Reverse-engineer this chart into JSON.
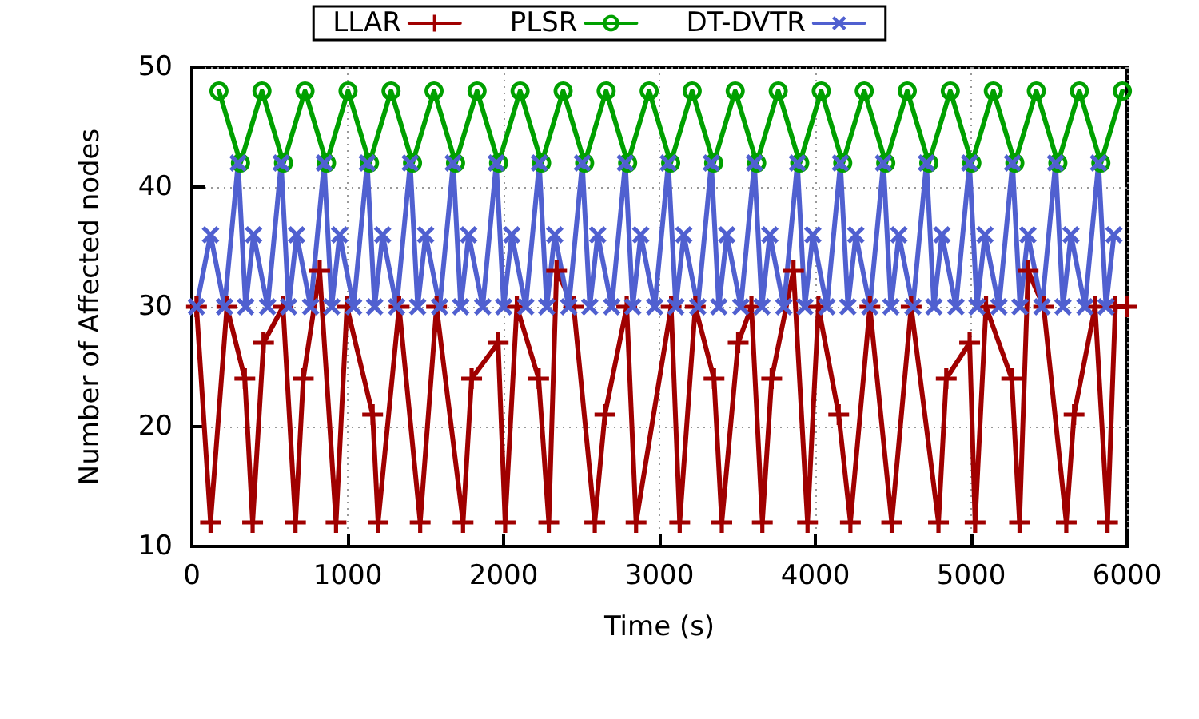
{
  "chart_data": {
    "type": "line",
    "xlabel": "Time (s)",
    "ylabel": "Number of Affected nodes",
    "xlim": [
      0,
      6000
    ],
    "xticks": [
      0,
      1000,
      2000,
      3000,
      4000,
      5000,
      6000
    ],
    "ylim": [
      10,
      50
    ],
    "yticks": [
      10,
      20,
      30,
      40,
      50
    ],
    "grid": true,
    "legend": "top",
    "line_style": "solid",
    "series": [
      {
        "name": "LLAR",
        "color": "#a00000",
        "marker": "plus",
        "x": [
          30,
          120,
          225,
          340,
          390,
          460,
          585,
          665,
          715,
          820,
          925,
          995,
          1160,
          1195,
          1330,
          1465,
          1570,
          1740,
          1795,
          1965,
          2010,
          2085,
          2225,
          2290,
          2340,
          2450,
          2585,
          2650,
          2790,
          2850,
          3075,
          3130,
          3230,
          3350,
          3400,
          3505,
          3590,
          3660,
          3720,
          3860,
          3950,
          4020,
          4150,
          4225,
          4350,
          4490,
          4615,
          4790,
          4840,
          4990,
          5025,
          5095,
          5260,
          5310,
          5365,
          5465,
          5610,
          5660,
          5795,
          5875,
          5925,
          6000
        ],
        "values": [
          30,
          12,
          30,
          24,
          12,
          27,
          30,
          12,
          24,
          33,
          12,
          30,
          21,
          12,
          30,
          12,
          30,
          12,
          24,
          27,
          12,
          30,
          24,
          12,
          33,
          30,
          12,
          21,
          30,
          12,
          30,
          12,
          30,
          24,
          12,
          27,
          30,
          12,
          24,
          33,
          12,
          30,
          21,
          12,
          30,
          12,
          30,
          12,
          24,
          27,
          12,
          30,
          24,
          12,
          33,
          30,
          12,
          21,
          30,
          12,
          30,
          30
        ]
      },
      {
        "name": "PLSR",
        "color": "#00a000",
        "marker": "circle",
        "x": [
          174,
          312,
          450,
          588,
          726,
          864,
          1002,
          1140,
          1278,
          1416,
          1554,
          1692,
          1830,
          1968,
          2106,
          2244,
          2382,
          2520,
          2658,
          2796,
          2934,
          3072,
          3210,
          3348,
          3486,
          3624,
          3762,
          3900,
          4038,
          4176,
          4314,
          4452,
          4590,
          4728,
          4866,
          5004,
          5142,
          5280,
          5418,
          5556,
          5694,
          5832,
          5970
        ],
        "values": [
          48,
          42,
          48,
          42,
          48,
          42,
          48,
          42,
          48,
          42,
          48,
          42,
          48,
          42,
          48,
          42,
          48,
          42,
          48,
          42,
          48,
          42,
          48,
          42,
          48,
          42,
          48,
          42,
          48,
          42,
          48,
          42,
          48,
          42,
          48,
          42,
          48,
          42,
          48,
          42,
          48,
          42,
          48
        ]
      },
      {
        "name": "DT-DVTR",
        "color": "#5060d0",
        "marker": "cross",
        "x": [
          30,
          120,
          210,
          297,
          345,
          396,
          486,
          573,
          621,
          672,
          762,
          849,
          897,
          948,
          1038,
          1125,
          1173,
          1224,
          1314,
          1401,
          1449,
          1500,
          1590,
          1677,
          1725,
          1776,
          1866,
          1953,
          2001,
          2052,
          2142,
          2229,
          2277,
          2328,
          2418,
          2505,
          2553,
          2604,
          2694,
          2781,
          2829,
          2880,
          2970,
          3057,
          3105,
          3156,
          3246,
          3333,
          3381,
          3432,
          3522,
          3609,
          3657,
          3708,
          3798,
          3885,
          3933,
          3984,
          4074,
          4161,
          4209,
          4260,
          4350,
          4437,
          4485,
          4536,
          4626,
          4713,
          4761,
          4812,
          4902,
          4989,
          5037,
          5088,
          5178,
          5265,
          5313,
          5364,
          5454,
          5541,
          5589,
          5640,
          5730,
          5817,
          5865,
          5916
        ],
        "values": [
          30,
          36,
          30,
          42,
          30,
          36,
          30,
          42,
          30,
          36,
          30,
          42,
          30,
          36,
          30,
          42,
          30,
          36,
          30,
          42,
          30,
          36,
          30,
          42,
          30,
          36,
          30,
          42,
          30,
          36,
          30,
          42,
          30,
          36,
          30,
          42,
          30,
          36,
          30,
          42,
          30,
          36,
          30,
          42,
          30,
          36,
          30,
          42,
          30,
          36,
          30,
          42,
          30,
          36,
          30,
          42,
          30,
          36,
          30,
          42,
          30,
          36,
          30,
          42,
          30,
          36,
          30,
          42,
          30,
          36,
          30,
          42,
          30,
          36,
          30,
          42,
          30,
          36,
          30,
          42,
          30,
          36,
          30,
          42,
          30,
          36
        ]
      }
    ]
  }
}
